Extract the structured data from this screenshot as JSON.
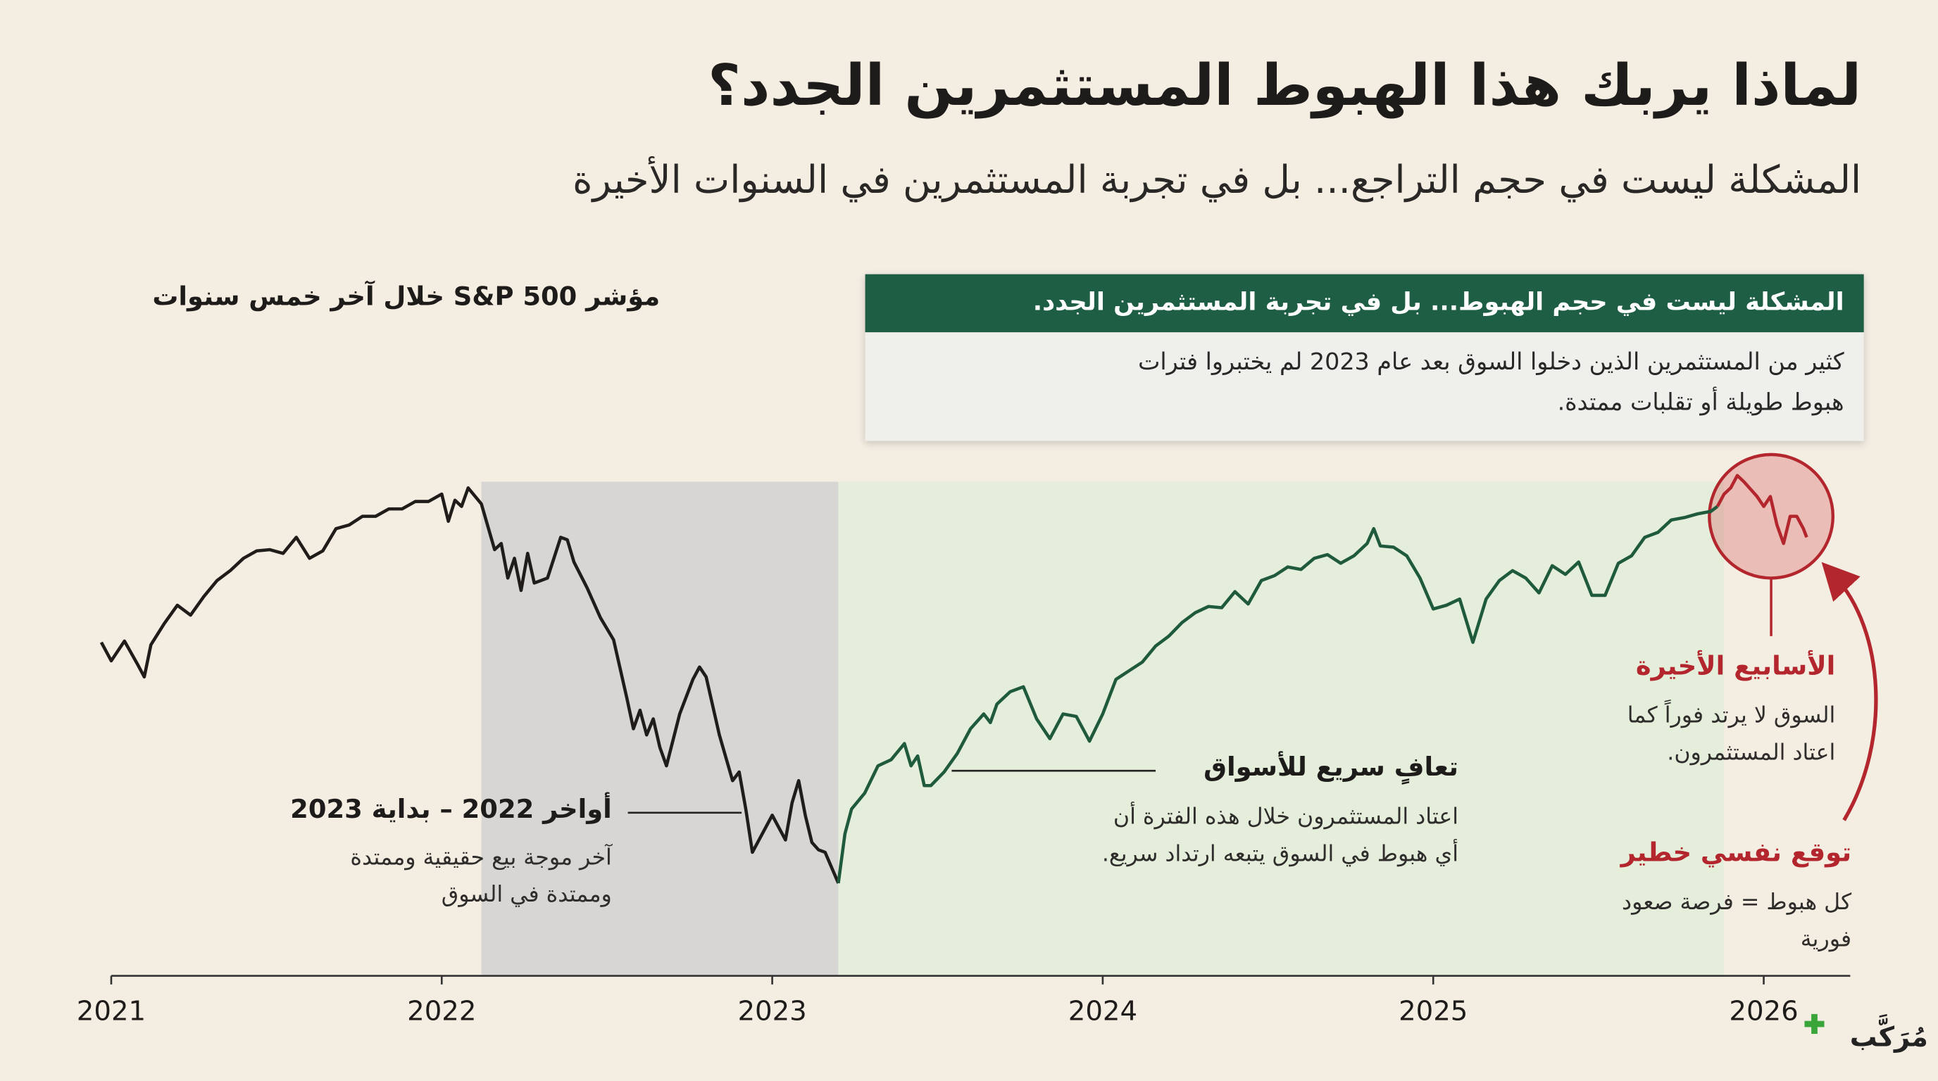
{
  "title": "لماذا يربك هذا الهبوط المستثمرين الجدد؟",
  "subtitle": "المشكلة ليست في حجم التراجع... بل في تجربة المستثمرين في السنوات الأخيرة",
  "callout": {
    "title": "المشكلة ليست في حجم الهبوط... بل في تجربة المستثمرين الجدد.",
    "lines": [
      "كثير من المستثمرين الذين دخلوا السوق بعد عام 2023 لم يختبروا فترات",
      "هبوط طويلة أو تقلبات ممتدة."
    ]
  },
  "annotations": [
    {
      "title": "أواخر 2022 – بداية 2023",
      "lines": [
        "آخر موجة بيع حقيقية وممتدة",
        "وممتدة في السوق"
      ]
    },
    {
      "title": "تعافٍ سريع للأسواق",
      "lines": [
        "اعتاد المستثمرون خلال هذه الفترة أن",
        "أي هبوط في السوق يتبعه ارتداد سريع."
      ]
    },
    {
      "title": "الأسابيع الأخيرة",
      "lines": [
        "السوق لا يرتد فوراً كما",
        "اعتاد المستثمرون."
      ]
    },
    {
      "title": "توقع نفسي خطير",
      "lines": [
        "كل هبوط = فرصة صعود",
        "فورية"
      ]
    }
  ],
  "logo": "مُرَكَّب",
  "chart_data": {
    "type": "line",
    "title": "مؤشر S&P 500 خلال آخر خمس سنوات",
    "xlim": [
      2021,
      2026
    ],
    "xticks": [
      2021,
      2022,
      2023,
      2024,
      2025,
      2026
    ],
    "ylim": [
      3000,
      5000
    ],
    "shaded_regions": [
      {
        "xlim": [
          2022.12,
          2023.2
        ],
        "color": "#d7d6d4"
      },
      {
        "xlim": [
          2023.2,
          2025.88
        ],
        "color": "#e4eedb"
      }
    ],
    "series": [
      {
        "color": "#1f1c1a",
        "x": [
          2020.97,
          2021.0,
          2021.04,
          2021.08,
          2021.1,
          2021.12,
          2021.16,
          2021.2,
          2021.24,
          2021.28,
          2021.32,
          2021.36,
          2021.4,
          2021.44,
          2021.48,
          2021.52,
          2021.56,
          2021.6,
          2021.64,
          2021.68,
          2021.72,
          2021.76,
          2021.8,
          2021.84,
          2021.88,
          2021.92,
          2021.96,
          2022.0,
          2022.02,
          2022.04,
          2022.06,
          2022.08,
          2022.12,
          2022.16,
          2022.18,
          2022.2,
          2022.22,
          2022.24,
          2022.26,
          2022.28,
          2022.32,
          2022.36,
          2022.38,
          2022.4,
          2022.44,
          2022.48,
          2022.52,
          2022.56,
          2022.58,
          2022.6,
          2022.62,
          2022.64,
          2022.66,
          2022.68,
          2022.72,
          2022.76,
          2022.78,
          2022.8,
          2022.84,
          2022.88,
          2022.9,
          2022.92,
          2022.94,
          2022.96,
          2023.0,
          2023.04,
          2023.06,
          2023.08,
          2023.1,
          2023.12,
          2023.14,
          2023.16,
          2023.2
        ],
        "values": [
          4350,
          4275,
          4355,
          4260,
          4210,
          4340,
          4425,
          4500,
          4460,
          4535,
          4600,
          4640,
          4690,
          4720,
          4725,
          4710,
          4775,
          4690,
          4720,
          4810,
          4825,
          4860,
          4860,
          4890,
          4890,
          4920,
          4920,
          4950,
          4840,
          4925,
          4900,
          4975,
          4910,
          4725,
          4750,
          4610,
          4690,
          4560,
          4710,
          4590,
          4610,
          4775,
          4765,
          4675,
          4570,
          4450,
          4360,
          4125,
          4000,
          4075,
          3975,
          4040,
          3925,
          3850,
          4060,
          4200,
          4250,
          4210,
          3975,
          3790,
          3825,
          3675,
          3500,
          3550,
          3650,
          3550,
          3700,
          3790,
          3650,
          3540,
          3510,
          3500,
          3375
        ]
      },
      {
        "color": "#1f5a3d",
        "x": [
          2023.2,
          2023.22,
          2023.24,
          2023.28,
          2023.32,
          2023.36,
          2023.4,
          2023.42,
          2023.44,
          2023.46,
          2023.48,
          2023.52,
          2023.56,
          2023.6,
          2023.64,
          2023.66,
          2023.68,
          2023.72,
          2023.76,
          2023.8,
          2023.84,
          2023.88,
          2023.92,
          2023.96,
          2024.0,
          2024.04,
          2024.08,
          2024.12,
          2024.16,
          2024.2,
          2024.24,
          2024.28,
          2024.32,
          2024.36,
          2024.4,
          2024.44,
          2024.48,
          2024.52,
          2024.56,
          2024.6,
          2024.64,
          2024.68,
          2024.72,
          2024.76,
          2024.8,
          2024.82,
          2024.84,
          2024.88,
          2024.92,
          2024.96,
          2025.0,
          2025.04,
          2025.08,
          2025.12,
          2025.16,
          2025.2,
          2025.24,
          2025.28,
          2025.32,
          2025.36,
          2025.4,
          2025.44,
          2025.48,
          2025.52,
          2025.56,
          2025.6,
          2025.64,
          2025.68,
          2025.72,
          2025.76,
          2025.8,
          2025.84,
          2025.86
        ],
        "values": [
          3375,
          3575,
          3675,
          3740,
          3850,
          3875,
          3940,
          3850,
          3890,
          3770,
          3770,
          3825,
          3900,
          4000,
          4060,
          4025,
          4100,
          4150,
          4170,
          4040,
          3960,
          4060,
          4050,
          3950,
          4060,
          4200,
          4235,
          4270,
          4335,
          4375,
          4430,
          4470,
          4495,
          4490,
          4555,
          4505,
          4600,
          4620,
          4655,
          4645,
          4690,
          4705,
          4670,
          4700,
          4750,
          4810,
          4740,
          4735,
          4700,
          4610,
          4485,
          4500,
          4525,
          4350,
          4525,
          4600,
          4640,
          4610,
          4550,
          4660,
          4625,
          4675,
          4540,
          4540,
          4670,
          4700,
          4775,
          4795,
          4845,
          4855,
          4870,
          4880,
          4900
        ]
      },
      {
        "color": "#b3262d",
        "x": [
          2025.86,
          2025.88,
          2025.9,
          2025.92,
          2025.94,
          2025.96,
          2025.98,
          2026.0,
          2026.02,
          2026.04,
          2026.06,
          2026.08,
          2026.1,
          2026.12,
          2026.13
        ],
        "values": [
          4900,
          4950,
          4975,
          5025,
          5000,
          4970,
          4940,
          4900,
          4940,
          4825,
          4750,
          4860,
          4860,
          4810,
          4775
        ]
      }
    ]
  }
}
